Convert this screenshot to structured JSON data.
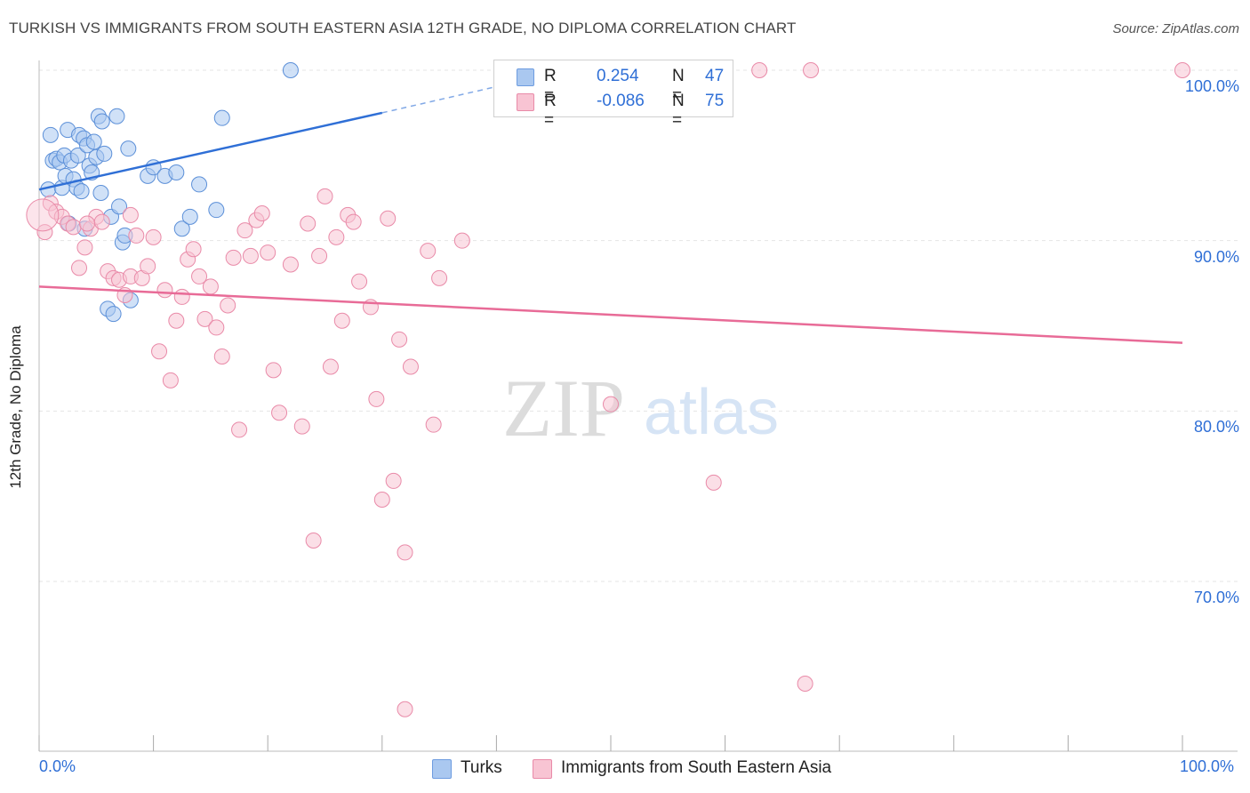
{
  "title": "TURKISH VS IMMIGRANTS FROM SOUTH EASTERN ASIA 12TH GRADE, NO DIPLOMA CORRELATION CHART",
  "source": "Source: ZipAtlas.com",
  "watermark": {
    "zip": "ZIP",
    "atlas": "atlas"
  },
  "legend_stats": [
    {
      "r_label": "R =",
      "r_value": "0.254",
      "n_label": "N =",
      "n_value": "47",
      "color": "#aac8f0",
      "stroke": "#6d9ce0"
    },
    {
      "r_label": "R =",
      "r_value": "-0.086",
      "n_label": "N =",
      "n_value": "75",
      "color": "#f8c4d3",
      "stroke": "#e98aa8"
    }
  ],
  "colors": {
    "turks_fill": "#aac8f0",
    "turks_stroke": "#5b8fd8",
    "turks_line": "#2f6fd6",
    "sea_fill": "#f8c4d3",
    "sea_stroke": "#e98aa8",
    "sea_line": "#e86b97",
    "tick_label": "#2f6fd6",
    "grid": "#e5e5e5"
  },
  "chart_data": {
    "type": "scatter",
    "title": "TURKISH VS IMMIGRANTS FROM SOUTH EASTERN ASIA 12TH GRADE, NO DIPLOMA CORRELATION CHART",
    "xlabel": "",
    "ylabel": "12th Grade, No Diploma",
    "xlim": [
      0,
      100
    ],
    "ylim": [
      60,
      102
    ],
    "x_tick_labels": [
      "0.0%",
      "100.0%"
    ],
    "y_ticks": [
      70,
      80,
      90,
      100
    ],
    "y_tick_labels": [
      "70.0%",
      "80.0%",
      "90.0%",
      "100.0%"
    ],
    "grid": true,
    "legend_position": "bottom",
    "series": [
      {
        "name": "Turks",
        "color": "#aac8f0",
        "trend": {
          "x": [
            0,
            30
          ],
          "y": [
            93.0,
            97.5
          ],
          "dashed_to": [
            43,
            99.5
          ]
        },
        "points": [
          [
            0.8,
            93.0
          ],
          [
            1.0,
            96.2
          ],
          [
            1.2,
            94.7
          ],
          [
            1.5,
            94.8
          ],
          [
            1.8,
            94.6
          ],
          [
            2.0,
            93.1
          ],
          [
            2.2,
            95.0
          ],
          [
            2.3,
            93.8
          ],
          [
            2.5,
            96.5
          ],
          [
            2.6,
            91.0
          ],
          [
            2.8,
            94.7
          ],
          [
            3.0,
            93.6
          ],
          [
            3.3,
            93.1
          ],
          [
            3.4,
            95.0
          ],
          [
            3.5,
            96.2
          ],
          [
            3.7,
            92.9
          ],
          [
            3.9,
            96.0
          ],
          [
            4.0,
            90.7
          ],
          [
            4.2,
            95.6
          ],
          [
            4.4,
            94.4
          ],
          [
            4.6,
            94.0
          ],
          [
            4.8,
            95.8
          ],
          [
            5.0,
            94.9
          ],
          [
            5.2,
            97.3
          ],
          [
            5.4,
            92.8
          ],
          [
            5.5,
            97.0
          ],
          [
            5.7,
            95.1
          ],
          [
            6.0,
            86.0
          ],
          [
            6.3,
            91.4
          ],
          [
            6.5,
            85.7
          ],
          [
            6.8,
            97.3
          ],
          [
            7.0,
            92.0
          ],
          [
            7.3,
            89.9
          ],
          [
            7.5,
            90.3
          ],
          [
            7.8,
            95.4
          ],
          [
            8.0,
            86.5
          ],
          [
            9.5,
            93.8
          ],
          [
            10.0,
            94.3
          ],
          [
            11.0,
            93.8
          ],
          [
            12.0,
            94.0
          ],
          [
            12.5,
            90.7
          ],
          [
            13.2,
            91.4
          ],
          [
            14.0,
            93.3
          ],
          [
            15.5,
            91.8
          ],
          [
            16.0,
            97.2
          ],
          [
            22.0,
            100.0
          ],
          [
            44.0,
            100.0
          ]
        ]
      },
      {
        "name": "Immigrants from South Eastern Asia",
        "color": "#f8c4d3",
        "trend": {
          "x": [
            0,
            100
          ],
          "y": [
            87.3,
            84.0
          ]
        },
        "points": [
          [
            0.5,
            90.5
          ],
          [
            1.0,
            92.2
          ],
          [
            1.5,
            91.7
          ],
          [
            2.0,
            91.4
          ],
          [
            2.5,
            91.0
          ],
          [
            3.0,
            90.8
          ],
          [
            3.5,
            88.4
          ],
          [
            4.0,
            89.6
          ],
          [
            4.5,
            90.7
          ],
          [
            5.0,
            91.4
          ],
          [
            5.5,
            91.1
          ],
          [
            6.0,
            88.2
          ],
          [
            6.5,
            87.8
          ],
          [
            7.0,
            87.7
          ],
          [
            7.5,
            86.8
          ],
          [
            8.0,
            87.9
          ],
          [
            8.5,
            90.3
          ],
          [
            9.0,
            87.8
          ],
          [
            9.5,
            88.5
          ],
          [
            10.0,
            90.2
          ],
          [
            10.5,
            83.5
          ],
          [
            11.0,
            87.1
          ],
          [
            11.5,
            81.8
          ],
          [
            12.0,
            85.3
          ],
          [
            12.5,
            86.7
          ],
          [
            13.0,
            88.9
          ],
          [
            13.5,
            89.5
          ],
          [
            14.0,
            87.9
          ],
          [
            14.5,
            85.4
          ],
          [
            15.0,
            87.3
          ],
          [
            15.5,
            84.9
          ],
          [
            16.0,
            83.2
          ],
          [
            16.5,
            86.2
          ],
          [
            17.0,
            89.0
          ],
          [
            17.5,
            78.9
          ],
          [
            18.0,
            90.6
          ],
          [
            18.5,
            89.1
          ],
          [
            19.0,
            91.2
          ],
          [
            19.5,
            91.6
          ],
          [
            20.0,
            89.3
          ],
          [
            20.5,
            82.4
          ],
          [
            21.0,
            79.9
          ],
          [
            22.0,
            88.6
          ],
          [
            23.0,
            79.1
          ],
          [
            23.5,
            91.0
          ],
          [
            24.0,
            72.4
          ],
          [
            24.5,
            89.1
          ],
          [
            25.0,
            92.6
          ],
          [
            25.5,
            82.6
          ],
          [
            26.0,
            90.2
          ],
          [
            26.5,
            85.3
          ],
          [
            27.0,
            91.5
          ],
          [
            27.5,
            91.1
          ],
          [
            28.0,
            87.6
          ],
          [
            29.0,
            86.1
          ],
          [
            29.5,
            80.7
          ],
          [
            30.0,
            74.8
          ],
          [
            30.5,
            91.3
          ],
          [
            31.0,
            75.9
          ],
          [
            31.5,
            84.2
          ],
          [
            32.0,
            71.7
          ],
          [
            32.5,
            82.6
          ],
          [
            34.0,
            89.4
          ],
          [
            34.5,
            79.2
          ],
          [
            35.0,
            87.8
          ],
          [
            37.0,
            90.0
          ],
          [
            50.0,
            80.4
          ],
          [
            59.0,
            75.8
          ],
          [
            63.0,
            100.0
          ],
          [
            67.0,
            64.0
          ],
          [
            67.5,
            100.0
          ],
          [
            100.0,
            100.0
          ],
          [
            32.0,
            62.5
          ],
          [
            8.0,
            91.5
          ],
          [
            4.2,
            91.0
          ]
        ]
      }
    ]
  }
}
